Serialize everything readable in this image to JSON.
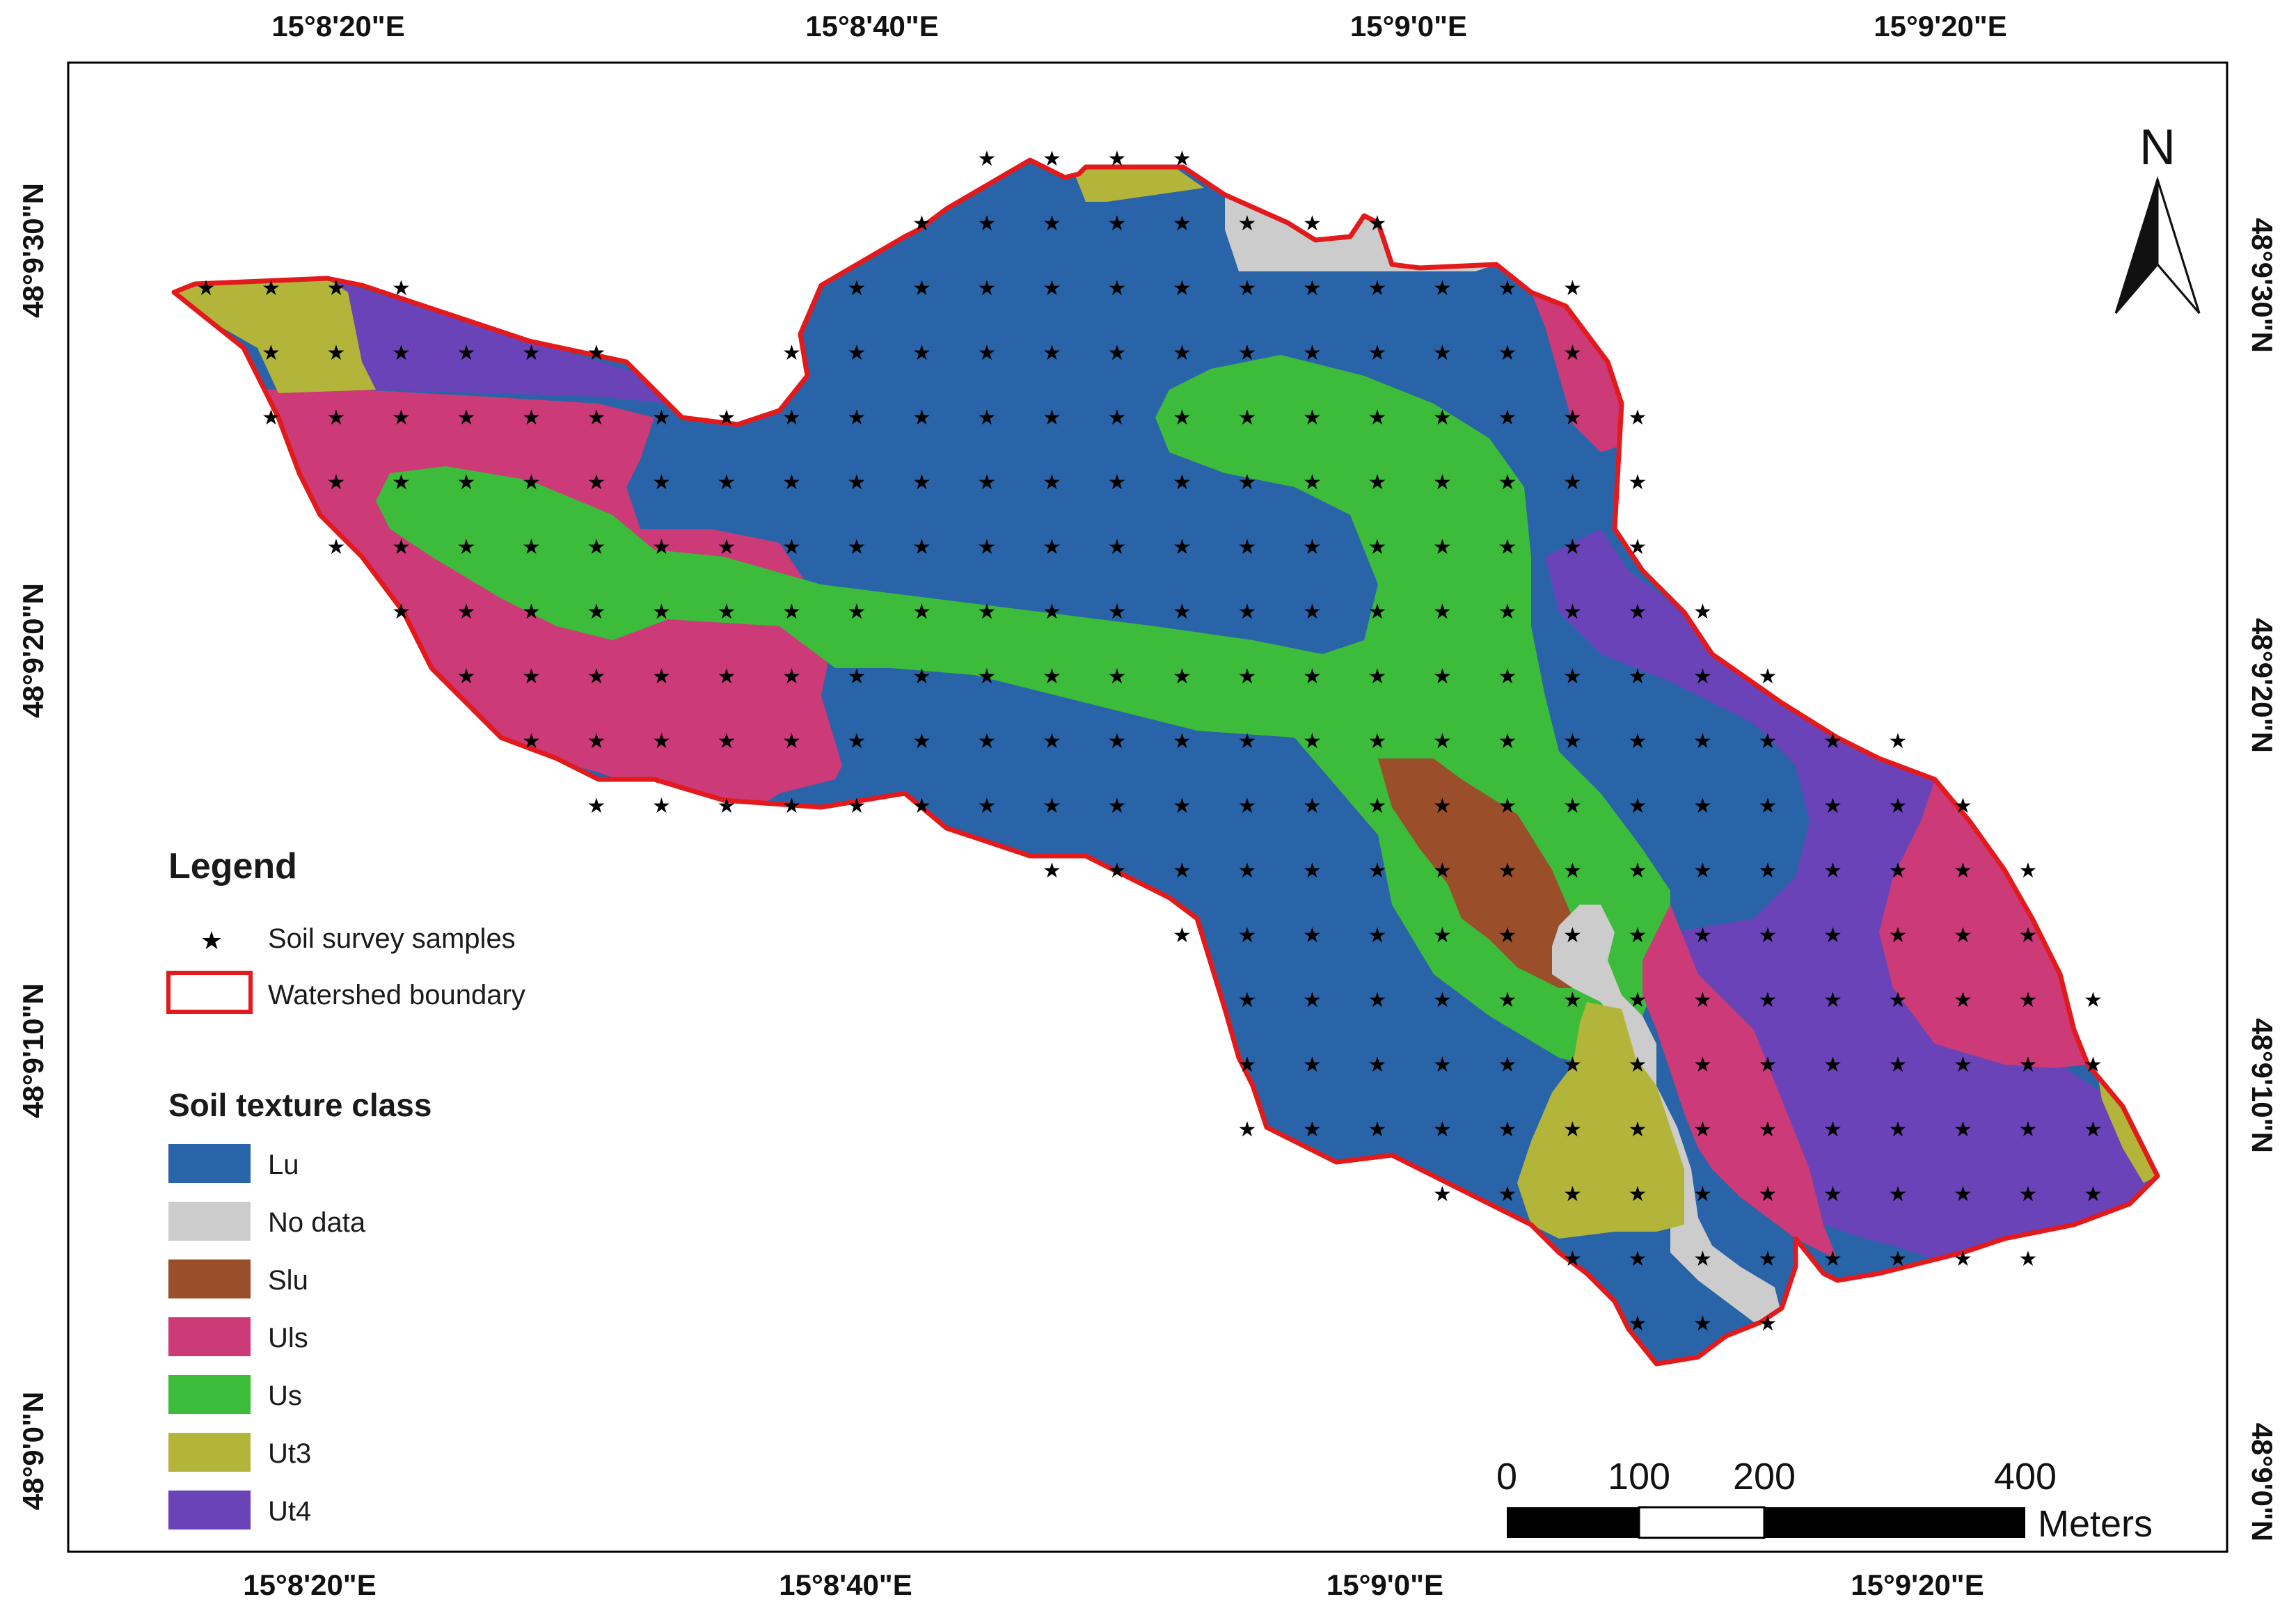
{
  "coordinates": {
    "top_labels": [
      "15°8'20\"E",
      "15°8'40\"E",
      "15°9'0\"E",
      "15°9'20\"E"
    ],
    "bottom_labels": [
      "15°8'20\"E",
      "15°8'40\"E",
      "15°9'0\"E",
      "15°9'20\"E"
    ],
    "left_labels": [
      "48°9'30\"N",
      "48°9'20\"N",
      "48°9'10\"N",
      "48°9'0\"N"
    ],
    "right_labels": [
      "48°9'30\"N",
      "48°9'20\"N",
      "48°9'10\"N",
      "48°9'0\"N"
    ]
  },
  "north_arrow": {
    "label": "N",
    "icon": "north-arrow-icon"
  },
  "scale_bar": {
    "ticks": [
      "0",
      "100",
      "200",
      "400"
    ],
    "unit": "Meters"
  },
  "legend": {
    "title": "Legend",
    "items": [
      {
        "label": "Soil survey samples",
        "icon": "star-marker-icon"
      },
      {
        "label": "Watershed boundary",
        "icon": "red-outline-box-icon",
        "color": "#e31a1c"
      }
    ],
    "class_heading": "Soil texture class",
    "classes": [
      {
        "label": "Lu",
        "color": "#2a64a8"
      },
      {
        "label": "No data",
        "color": "#cccccc"
      },
      {
        "label": "Slu",
        "color": "#9a4e2a"
      },
      {
        "label": "Uls",
        "color": "#cc3a78"
      },
      {
        "label": "Us",
        "color": "#3dbb3a"
      },
      {
        "label": "Ut3",
        "color": "#b3b53a"
      },
      {
        "label": "Ut4",
        "color": "#6a43b8"
      }
    ]
  }
}
